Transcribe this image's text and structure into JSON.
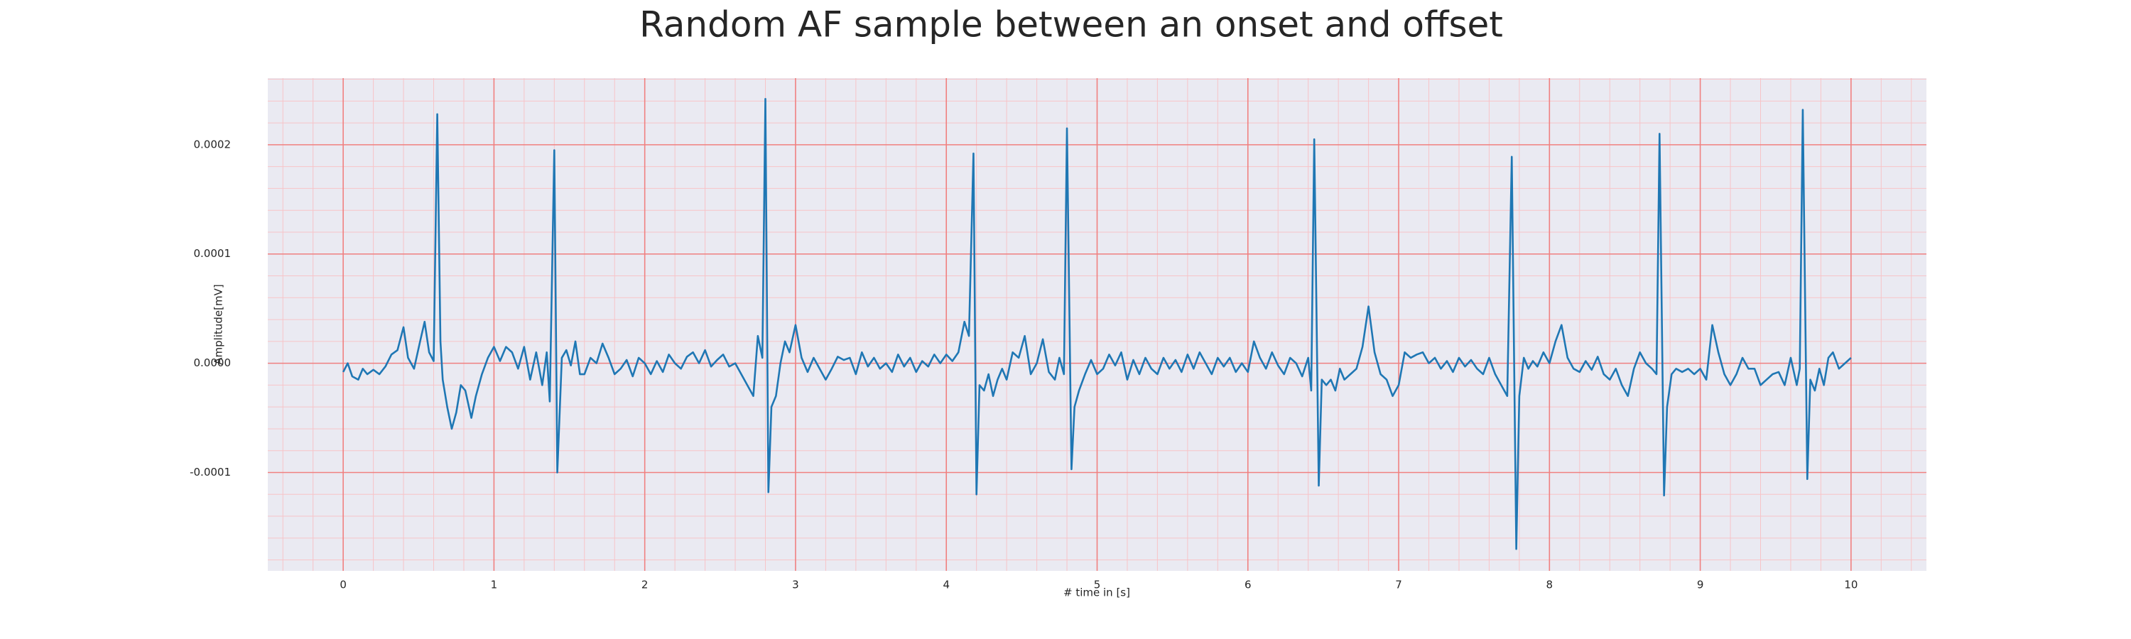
{
  "chart_data": {
    "type": "line",
    "title": "Random AF sample between an onset and offset",
    "xlabel": "# time in [s]",
    "ylabel": "Amplitude[mV]",
    "color": "#1f77b4",
    "grid": true,
    "grid_color": "#f08080",
    "minor_grid": true,
    "minor_grid_color": "#f7c4c8",
    "background": "#eaeaf2",
    "xlim": [
      -0.5,
      10.5
    ],
    "xticks": [
      0,
      1,
      2,
      3,
      4,
      5,
      6,
      7,
      8,
      9,
      10
    ],
    "xminorticks": [
      -0.4,
      -0.2,
      0.2,
      0.4,
      0.6,
      0.8,
      1.2,
      1.4,
      1.6,
      1.8,
      2.2,
      2.4,
      2.6,
      2.8,
      3.2,
      3.4,
      3.6,
      3.8,
      4.2,
      4.4,
      4.6,
      4.8,
      5.2,
      5.4,
      5.6,
      5.8,
      6.2,
      6.4,
      6.6,
      6.8,
      7.2,
      7.4,
      7.6,
      7.8,
      8.2,
      8.4,
      8.6,
      8.8,
      9.2,
      9.4,
      9.6,
      9.8,
      10.2,
      10.4
    ],
    "ylim": [
      -0.00019,
      0.000261
    ],
    "yticks": [
      {
        "value": -0.0001,
        "label": "-0.0001"
      },
      {
        "value": 0,
        "label": "0.0000"
      },
      {
        "value": 0.0001,
        "label": "0.0001"
      },
      {
        "value": 0.0002,
        "label": "0.0002"
      }
    ],
    "yminorticks": [
      -0.00018,
      -0.00016,
      -0.00014,
      -0.00012,
      -8e-05,
      -6e-05,
      -4e-05,
      -2e-05,
      2e-05,
      4e-05,
      6e-05,
      8e-05,
      0.00012,
      0.00014,
      0.00016,
      0.00018,
      0.00022,
      0.00024,
      0.00026
    ],
    "x": [
      0,
      0.03,
      0.06,
      0.1,
      0.13,
      0.16,
      0.2,
      0.24,
      0.28,
      0.32,
      0.36,
      0.4,
      0.43,
      0.47,
      0.51,
      0.54,
      0.57,
      0.6,
      0.624,
      0.645,
      0.66,
      0.69,
      0.72,
      0.75,
      0.78,
      0.81,
      0.85,
      0.88,
      0.92,
      0.96,
      1.0,
      1.04,
      1.08,
      1.12,
      1.16,
      1.2,
      1.24,
      1.28,
      1.32,
      1.35,
      1.37,
      1.4,
      1.42,
      1.45,
      1.48,
      1.51,
      1.54,
      1.57,
      1.6,
      1.64,
      1.68,
      1.72,
      1.76,
      1.8,
      1.84,
      1.88,
      1.92,
      1.96,
      2.0,
      2.04,
      2.08,
      2.12,
      2.16,
      2.2,
      2.24,
      2.28,
      2.32,
      2.36,
      2.4,
      2.44,
      2.48,
      2.52,
      2.56,
      2.6,
      2.64,
      2.68,
      2.72,
      2.75,
      2.78,
      2.8,
      2.82,
      2.84,
      2.87,
      2.9,
      2.93,
      2.96,
      3.0,
      3.04,
      3.08,
      3.12,
      3.16,
      3.2,
      3.24,
      3.28,
      3.32,
      3.36,
      3.4,
      3.44,
      3.48,
      3.52,
      3.56,
      3.6,
      3.64,
      3.68,
      3.72,
      3.76,
      3.8,
      3.84,
      3.88,
      3.92,
      3.96,
      4.0,
      4.04,
      4.08,
      4.12,
      4.15,
      4.18,
      4.2,
      4.22,
      4.25,
      4.28,
      4.31,
      4.34,
      4.37,
      4.4,
      4.44,
      4.48,
      4.52,
      4.56,
      4.6,
      4.64,
      4.68,
      4.72,
      4.75,
      4.78,
      4.8,
      4.83,
      4.85,
      4.88,
      4.92,
      4.96,
      5.0,
      5.04,
      5.08,
      5.12,
      5.16,
      5.2,
      5.24,
      5.28,
      5.32,
      5.36,
      5.4,
      5.44,
      5.48,
      5.52,
      5.56,
      5.6,
      5.64,
      5.68,
      5.72,
      5.76,
      5.8,
      5.84,
      5.88,
      5.92,
      5.96,
      6.0,
      6.04,
      6.08,
      6.12,
      6.16,
      6.2,
      6.24,
      6.28,
      6.32,
      6.36,
      6.4,
      6.42,
      6.44,
      6.47,
      6.49,
      6.52,
      6.55,
      6.58,
      6.61,
      6.64,
      6.68,
      6.72,
      6.76,
      6.8,
      6.84,
      6.88,
      6.92,
      6.96,
      7.0,
      7.04,
      7.08,
      7.12,
      7.16,
      7.2,
      7.24,
      7.28,
      7.32,
      7.36,
      7.4,
      7.44,
      7.48,
      7.52,
      7.56,
      7.6,
      7.64,
      7.68,
      7.72,
      7.75,
      7.78,
      7.8,
      7.83,
      7.86,
      7.89,
      7.92,
      7.96,
      8.0,
      8.04,
      8.08,
      8.12,
      8.16,
      8.2,
      8.24,
      8.28,
      8.32,
      8.36,
      8.4,
      8.44,
      8.48,
      8.52,
      8.56,
      8.6,
      8.64,
      8.68,
      8.71,
      8.73,
      8.76,
      8.78,
      8.81,
      8.84,
      8.88,
      8.92,
      8.96,
      9.0,
      9.04,
      9.08,
      9.12,
      9.16,
      9.2,
      9.24,
      9.28,
      9.32,
      9.36,
      9.4,
      9.44,
      9.48,
      9.52,
      9.56,
      9.6,
      9.64,
      9.66,
      9.68,
      9.71,
      9.73,
      9.76,
      9.79,
      9.82,
      9.85,
      9.88,
      9.92,
      9.96,
      10.0
    ],
    "values": [
      -8e-06,
      0,
      -1.2e-05,
      -1.5e-05,
      -5e-06,
      -1e-05,
      -6e-06,
      -1e-05,
      -3e-06,
      8e-06,
      1.2e-05,
      3.3e-05,
      5e-06,
      -5e-06,
      2e-05,
      3.8e-05,
      1e-05,
      2e-06,
      0.000228,
      2e-05,
      -1.5e-05,
      -4e-05,
      -6e-05,
      -4.5e-05,
      -2e-05,
      -2.5e-05,
      -5e-05,
      -3e-05,
      -1e-05,
      5e-06,
      1.5e-05,
      2e-06,
      1.5e-05,
      1e-05,
      -5e-06,
      1.5e-05,
      -1.5e-05,
      1e-05,
      -2e-05,
      1e-05,
      -3.5e-05,
      0.000195,
      -0.0001,
      5e-06,
      1.2e-05,
      -2e-06,
      2e-05,
      -1e-05,
      -1e-05,
      5e-06,
      0,
      1.8e-05,
      5e-06,
      -1e-05,
      -5e-06,
      3e-06,
      -1.2e-05,
      5e-06,
      0,
      -1e-05,
      2e-06,
      -8e-06,
      8e-06,
      0,
      -5e-06,
      6e-06,
      1e-05,
      0,
      1.2e-05,
      -3e-06,
      3e-06,
      8e-06,
      -3e-06,
      0,
      -1e-05,
      -2e-05,
      -3e-05,
      2.5e-05,
      5e-06,
      0.000242,
      -0.000118,
      -4e-05,
      -3e-05,
      0,
      2e-05,
      1e-05,
      3.5e-05,
      5e-06,
      -8e-06,
      5e-06,
      -5e-06,
      -1.5e-05,
      -5e-06,
      6e-06,
      3e-06,
      5e-06,
      -1e-05,
      1e-05,
      -3e-06,
      5e-06,
      -5e-06,
      0,
      -8e-06,
      8e-06,
      -3e-06,
      5e-06,
      -8e-06,
      2e-06,
      -3e-06,
      8e-06,
      0,
      8e-06,
      2e-06,
      1e-05,
      3.8e-05,
      2.5e-05,
      0.000192,
      -0.00012,
      -2e-05,
      -2.5e-05,
      -1e-05,
      -3e-05,
      -1.5e-05,
      -5e-06,
      -1.5e-05,
      1e-05,
      5e-06,
      2.5e-05,
      -1e-05,
      0,
      2.2e-05,
      -8e-06,
      -1.5e-05,
      5e-06,
      -1e-05,
      0.000215,
      -9.7e-05,
      -4e-05,
      -2.5e-05,
      -1e-05,
      3e-06,
      -1e-05,
      -5e-06,
      8e-06,
      -2e-06,
      1e-05,
      -1.5e-05,
      3e-06,
      -1e-05,
      5e-06,
      -5e-06,
      -1e-05,
      5e-06,
      -5e-06,
      3e-06,
      -8e-06,
      8e-06,
      -5e-06,
      1e-05,
      0,
      -1e-05,
      5e-06,
      -3e-06,
      5e-06,
      -8e-06,
      0,
      -8e-06,
      2e-05,
      5e-06,
      -5e-06,
      1e-05,
      -2e-06,
      -1e-05,
      5e-06,
      0,
      -1.2e-05,
      5e-06,
      -2.5e-05,
      0.000205,
      -0.000112,
      -1.5e-05,
      -2e-05,
      -1.5e-05,
      -2.5e-05,
      -5e-06,
      -1.5e-05,
      -1e-05,
      -5e-06,
      1.5e-05,
      5.2e-05,
      1e-05,
      -1e-05,
      -1.5e-05,
      -3e-05,
      -2e-05,
      1e-05,
      5e-06,
      8e-06,
      1e-05,
      0,
      5e-06,
      -5e-06,
      2e-06,
      -8e-06,
      5e-06,
      -3e-06,
      3e-06,
      -5e-06,
      -1e-05,
      5e-06,
      -1e-05,
      -2e-05,
      -3e-05,
      0.000189,
      -0.00017,
      -3e-05,
      5e-06,
      -5e-06,
      2e-06,
      -3e-06,
      1e-05,
      0,
      2e-05,
      3.5e-05,
      5e-06,
      -5e-06,
      -8e-06,
      2e-06,
      -6e-06,
      6e-06,
      -1e-05,
      -1.5e-05,
      -5e-06,
      -2e-05,
      -3e-05,
      -5e-06,
      1e-05,
      0,
      -5e-06,
      -1e-05,
      0.00021,
      -0.000121,
      -4e-05,
      -1e-05,
      -5e-06,
      -8e-06,
      -5e-06,
      -1e-05,
      -5e-06,
      -1.5e-05,
      3.5e-05,
      1e-05,
      -1e-05,
      -2e-05,
      -1e-05,
      5e-06,
      -5e-06,
      -5e-06,
      -2e-05,
      -1.5e-05,
      -1e-05,
      -8e-06,
      -2e-05,
      5e-06,
      -2e-05,
      -5e-06,
      0.000232,
      -0.000106,
      -1.5e-05,
      -2.5e-05,
      -5e-06,
      -2e-05,
      5e-06,
      1e-05,
      -5e-06,
      0,
      5e-06
    ]
  }
}
